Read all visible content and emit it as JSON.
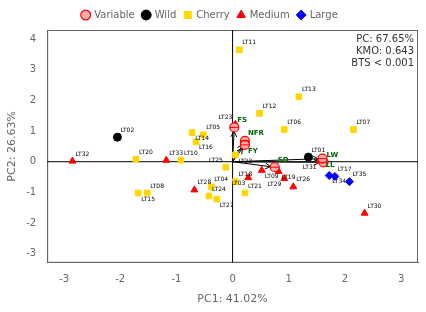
{
  "chart_data": {
    "type": "scatter",
    "xlabel": "PC1: 41.02%",
    "ylabel": "PC2: 26.63%",
    "xlim": [
      -3.3,
      3.3
    ],
    "ylim": [
      -3.3,
      4.3
    ],
    "xticks": [
      -3,
      -2,
      -1,
      0,
      1,
      2,
      3
    ],
    "yticks": [
      -3,
      -2,
      -1,
      0,
      1,
      2,
      3,
      4
    ],
    "grid": false,
    "legend": "top",
    "annotations": [
      "PC: 67.65%",
      "KMO: 0.643",
      "BTS < 0.001"
    ],
    "series": [
      {
        "name": "Wild",
        "color": "#000000",
        "marker": "circle",
        "labels": [
          "LT01",
          "LT02"
        ],
        "x": [
          1.35,
          -2.05
        ],
        "values": [
          0.15,
          0.8
        ]
      },
      {
        "name": "Cherry",
        "color": "#FFD700",
        "marker": "square",
        "labels": [
          "LT04",
          "LT05",
          "LT06",
          "LT07",
          "LT08",
          "LT10",
          "LT11",
          "LT12",
          "LT13",
          "LT14",
          "LT15",
          "LT16",
          "LT18",
          "LT20",
          "LT21",
          "LT22",
          "LT24",
          "LT25",
          "LT27"
        ],
        "x": [
          -0.38,
          -0.52,
          0.92,
          2.15,
          -1.52,
          -0.92,
          0.12,
          0.48,
          1.18,
          -0.72,
          -1.68,
          -0.65,
          0.05,
          -1.72,
          0.22,
          0.05,
          -0.42,
          -0.12,
          -0.28
        ],
        "values": [
          -0.82,
          0.88,
          1.05,
          1.05,
          -1.02,
          0.05,
          3.65,
          1.58,
          2.12,
          0.95,
          -1.02,
          0.65,
          -0.65,
          0.08,
          -1.02,
          0.22,
          -1.12,
          -0.18,
          -1.22
        ]
      },
      {
        "name": "Medium",
        "color": "#FF0000",
        "marker": "triangle",
        "labels": [
          "LT03",
          "LT09",
          "LT19",
          "LT23",
          "LT26",
          "LT28",
          "LT29",
          "LT30",
          "LT31",
          "LT32",
          "LT33"
        ],
        "x": [
          0.28,
          0.52,
          0.82,
          0.05,
          1.08,
          -0.68,
          0.92,
          2.35,
          1.55,
          -2.85,
          -1.18
        ],
        "values": [
          -0.52,
          -0.28,
          -0.32,
          1.22,
          -0.82,
          -0.92,
          -0.55,
          -1.68,
          0.02,
          0.02,
          0.05
        ]
      },
      {
        "name": "Large",
        "color": "#0000FF",
        "marker": "diamond",
        "labels": [
          "LT17",
          "LT34",
          "LT35"
        ],
        "x": [
          1.82,
          1.72,
          2.08
        ],
        "values": [
          -0.48,
          -0.45,
          -0.65
        ]
      },
      {
        "name": "Variable",
        "type": "arrow",
        "color": "#FFAAAA",
        "marker": "circle",
        "labels": [
          "LW",
          "LL",
          "SD",
          "NFR",
          "FS",
          "FY"
        ],
        "x": [
          1.62,
          1.6,
          0.75,
          0.22,
          0.03,
          0.22
        ],
        "values": [
          -0.02,
          0.1,
          -0.18,
          0.68,
          1.12,
          0.55
        ]
      }
    ]
  }
}
